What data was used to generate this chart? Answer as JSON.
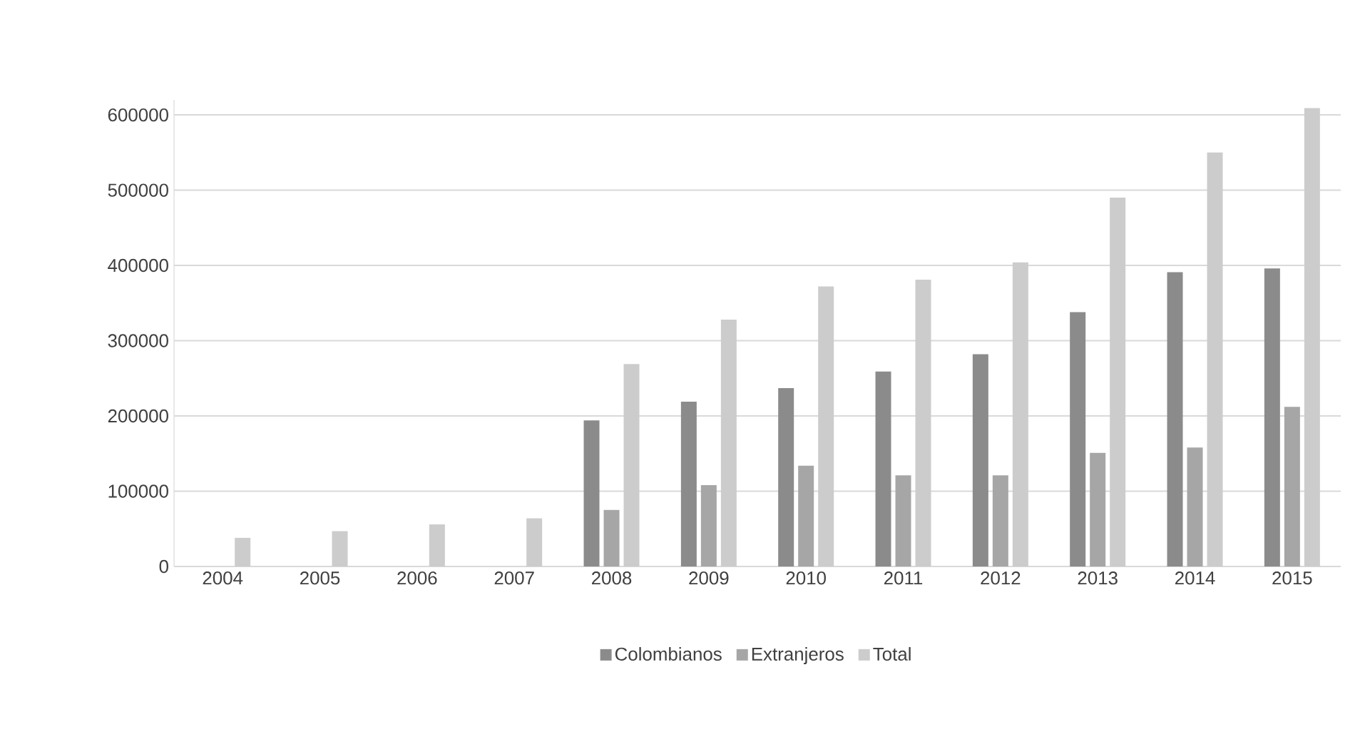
{
  "chart_data": {
    "type": "bar",
    "categories": [
      "2004",
      "2005",
      "2006",
      "2007",
      "2008",
      "2009",
      "2010",
      "2011",
      "2012",
      "2013",
      "2014",
      "2015"
    ],
    "series": [
      {
        "name": "Colombianos",
        "color": "#8b8b8b",
        "values": [
          null,
          null,
          null,
          null,
          194000,
          219000,
          237000,
          259000,
          282000,
          338000,
          391000,
          396000
        ]
      },
      {
        "name": "Extranjeros",
        "color": "#a6a6a6",
        "values": [
          null,
          null,
          null,
          null,
          75000,
          108000,
          134000,
          121000,
          121000,
          151000,
          158000,
          212000
        ]
      },
      {
        "name": "Total",
        "color": "#cccccc",
        "values": [
          38000,
          47000,
          56000,
          64000,
          269000,
          328000,
          372000,
          381000,
          404000,
          490000,
          550000,
          609000
        ]
      }
    ],
    "ylim": [
      0,
      620000
    ],
    "yticks": [
      0,
      100000,
      200000,
      300000,
      400000,
      500000,
      600000
    ],
    "grid": "y",
    "legend": "bottom"
  }
}
